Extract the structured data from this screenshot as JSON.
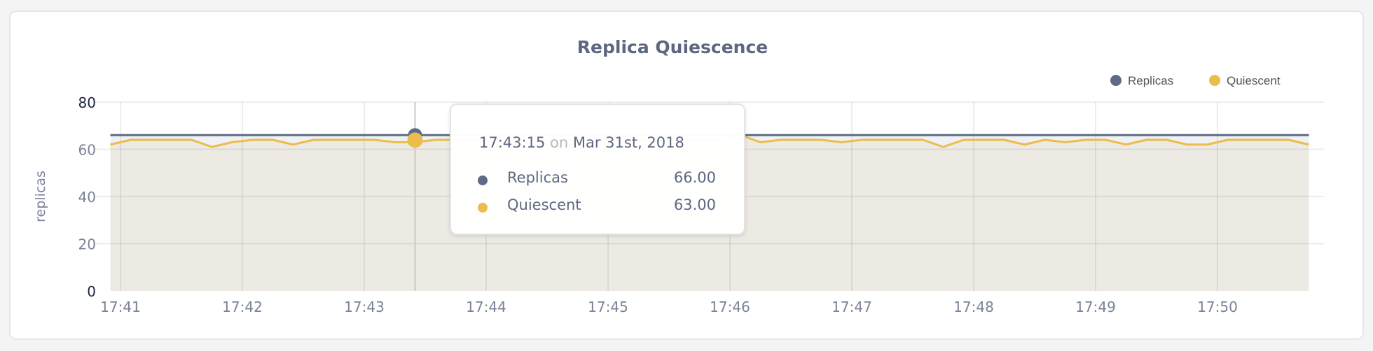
{
  "chart_data": {
    "type": "area",
    "title": "Replica Quiescence",
    "ylabel": "replicas",
    "xlabel": "",
    "ylim": [
      0,
      80
    ],
    "yticks": [
      "0",
      "20",
      "40",
      "60",
      "80"
    ],
    "xticks": [
      "17:41",
      "17:42",
      "17:43",
      "17:44",
      "17:45",
      "17:46",
      "17:47",
      "17:48",
      "17:49",
      "17:50"
    ],
    "grid": true,
    "legend_position": "top-right",
    "x": [
      "17:40:45",
      "17:40:55",
      "17:41:05",
      "17:41:15",
      "17:41:25",
      "17:41:35",
      "17:41:45",
      "17:41:55",
      "17:42:05",
      "17:42:15",
      "17:42:25",
      "17:42:35",
      "17:42:45",
      "17:42:55",
      "17:43:05",
      "17:43:15",
      "17:43:25",
      "17:43:35",
      "17:43:45",
      "17:43:55",
      "17:44:05",
      "17:44:15",
      "17:44:25",
      "17:44:35",
      "17:44:45",
      "17:44:55",
      "17:45:05",
      "17:45:15",
      "17:45:25",
      "17:45:35",
      "17:45:45",
      "17:45:55",
      "17:46:05",
      "17:46:15",
      "17:46:25",
      "17:46:35",
      "17:46:45",
      "17:46:55",
      "17:47:05",
      "17:47:15",
      "17:47:25",
      "17:47:35",
      "17:47:45",
      "17:47:55",
      "17:48:05",
      "17:48:15",
      "17:48:25",
      "17:48:35",
      "17:48:45",
      "17:48:55",
      "17:49:05",
      "17:49:15",
      "17:49:25",
      "17:49:35",
      "17:49:45",
      "17:49:55",
      "17:50:05",
      "17:50:15",
      "17:50:25",
      "17:50:35"
    ],
    "series": [
      {
        "name": "Replicas",
        "color": "#5f6b86",
        "values": [
          66,
          66,
          66,
          66,
          66,
          66,
          66,
          66,
          66,
          66,
          66,
          66,
          66,
          66,
          66,
          66,
          66,
          66,
          66,
          66,
          66,
          66,
          66,
          66,
          66,
          66,
          66,
          66,
          66,
          66,
          66,
          66,
          66,
          66,
          66,
          66,
          66,
          66,
          66,
          66,
          66,
          66,
          66,
          66,
          66,
          66,
          66,
          66,
          66,
          66,
          66,
          66,
          66,
          66,
          66,
          66,
          66,
          66,
          66,
          66
        ]
      },
      {
        "name": "Quiescent",
        "color": "#ecbc4c",
        "values": [
          62,
          64,
          64,
          64,
          64,
          61,
          63,
          64,
          64,
          62,
          64,
          64,
          64,
          64,
          63,
          63,
          64,
          64,
          64,
          64,
          64,
          64,
          64,
          64,
          64,
          64,
          64,
          64,
          64,
          64,
          64,
          66,
          63,
          64,
          64,
          64,
          63,
          64,
          64,
          64,
          64,
          61,
          64,
          64,
          64,
          62,
          64,
          63,
          64,
          64,
          62,
          64,
          64,
          62,
          62,
          64,
          64,
          64,
          64,
          62
        ]
      }
    ]
  },
  "tooltip": {
    "time": "17:43:15",
    "on": "on",
    "date": "Mar 31st, 2018",
    "hover_index": 15,
    "rows": [
      {
        "name": "Replicas",
        "value": "66.00"
      },
      {
        "name": "Quiescent",
        "value": "63.00"
      }
    ]
  }
}
